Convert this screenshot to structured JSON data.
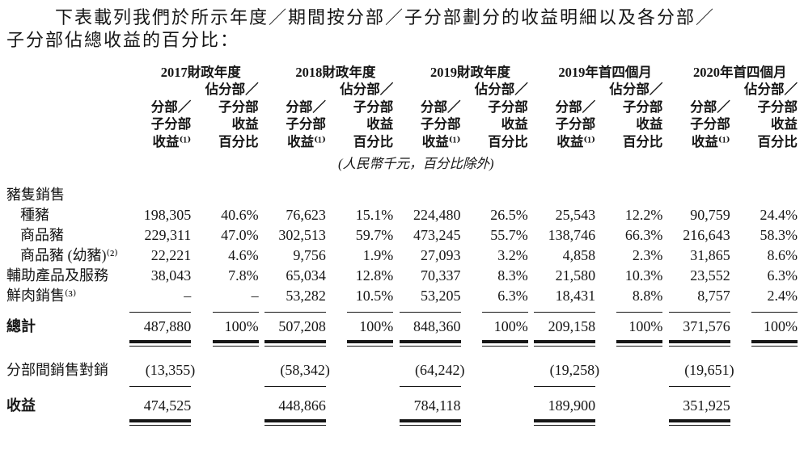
{
  "colors": {
    "text": "#161616",
    "background": "#ffffff"
  },
  "intro": {
    "line1": "下表載列我們於所示年度／期間按分部／子分部劃分的收益明細以及各分部／",
    "line2": "子分部佔總收益的百分比："
  },
  "periods": [
    "2017財政年度",
    "2018財政年度",
    "2019財政年度",
    "2019年首四個月",
    "2020年首四個月"
  ],
  "subheaders": {
    "amount": "分部／\n子分部\n收益⁽¹⁾",
    "percent": "佔分部／\n子分部\n收益\n百分比"
  },
  "unit_note": "(人民幣千元，百分比除外)",
  "rows": [
    {
      "label": "豬隻銷售",
      "values": []
    },
    {
      "label": "種豬",
      "values": [
        "198,305",
        "40.6%",
        "76,623",
        "15.1%",
        "224,480",
        "26.5%",
        "25,543",
        "12.2%",
        "90,759",
        "24.4%"
      ]
    },
    {
      "label": "商品豬",
      "values": [
        "229,311",
        "47.0%",
        "302,513",
        "59.7%",
        "473,245",
        "55.7%",
        "138,746",
        "66.3%",
        "216,643",
        "58.3%"
      ]
    },
    {
      "label": "商品豬 (幼豬)⁽²⁾",
      "values": [
        "22,221",
        "4.6%",
        "9,756",
        "1.9%",
        "27,093",
        "3.2%",
        "4,858",
        "2.3%",
        "31,865",
        "8.6%"
      ]
    },
    {
      "label": "輔助產品及服務",
      "values": [
        "38,043",
        "7.8%",
        "65,034",
        "12.8%",
        "70,337",
        "8.3%",
        "21,580",
        "10.3%",
        "23,552",
        "6.3%"
      ]
    },
    {
      "label": "鮮肉銷售⁽³⁾",
      "values": [
        "–",
        "–",
        "53,282",
        "10.5%",
        "53,205",
        "6.3%",
        "18,431",
        "8.8%",
        "8,757",
        "2.4%"
      ]
    }
  ],
  "total": {
    "label": "總計",
    "values": [
      "487,880",
      "100%",
      "507,208",
      "100%",
      "848,360",
      "100%",
      "209,158",
      "100%",
      "371,576",
      "100%"
    ]
  },
  "elimination": {
    "label": "分部間銷售對銷",
    "values": [
      "(13,355)",
      "(58,342)",
      "(64,242)",
      "(19,258)",
      "(19,651)"
    ]
  },
  "revenue": {
    "label": "收益",
    "values": [
      "474,525",
      "448,866",
      "784,118",
      "189,900",
      "351,925"
    ]
  }
}
